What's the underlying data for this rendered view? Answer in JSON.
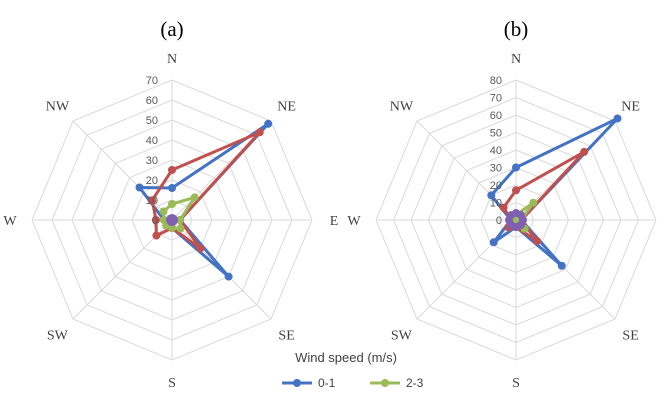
{
  "chart_data": [
    {
      "type": "radar",
      "panel_label": "(a)",
      "directions": [
        "N",
        "NE",
        "E",
        "SE",
        "S",
        "SW",
        "W",
        "NW"
      ],
      "rmax": 70,
      "ticks": [
        "0",
        "10",
        "20",
        "30",
        "40",
        "50",
        "60",
        "70"
      ],
      "series": [
        {
          "name": "0-1",
          "color": "#4472C4",
          "values": [
            16,
            68,
            4,
            40,
            4,
            4,
            4,
            23
          ]
        },
        {
          "name": "",
          "color": "#C0504D",
          "values": [
            25,
            62,
            4,
            20,
            4,
            11,
            8,
            14
          ]
        },
        {
          "name": "2-3",
          "color": "#9BBB59",
          "values": [
            8,
            16,
            4,
            6,
            4,
            4,
            4,
            6
          ]
        },
        {
          "name": "",
          "color": "#7F5FAF",
          "values": [
            1,
            1,
            1,
            1,
            1,
            1,
            1,
            1
          ]
        }
      ],
      "grid": true
    },
    {
      "type": "radar",
      "panel_label": "(b)",
      "directions": [
        "N",
        "NE",
        "E",
        "SE",
        "S",
        "SW",
        "W",
        "NW"
      ],
      "rmax": 80,
      "ticks": [
        "0",
        "10",
        "20",
        "30",
        "40",
        "50",
        "60",
        "70",
        "80"
      ],
      "series": [
        {
          "name": "0-1",
          "color": "#4472C4",
          "values": [
            30,
            82,
            3,
            37,
            4,
            18,
            3,
            20
          ]
        },
        {
          "name": "",
          "color": "#C0504D",
          "values": [
            17,
            55,
            3,
            17,
            4,
            6,
            3,
            10
          ]
        },
        {
          "name": "2-3",
          "color": "#9BBB59",
          "values": [
            3,
            14,
            3,
            7,
            2,
            2,
            2,
            3
          ]
        },
        {
          "name": "",
          "color": "#7F5FAF",
          "values": [
            4,
            4,
            4,
            4,
            4,
            4,
            4,
            4
          ]
        }
      ],
      "grid": true
    }
  ],
  "legend": {
    "title": "Wind speed (m/s)",
    "placement": "bottom",
    "entries": [
      {
        "label": "0-1",
        "color": "#4472C4"
      },
      {
        "label": "2-3",
        "color": "#9BBB59"
      }
    ]
  }
}
